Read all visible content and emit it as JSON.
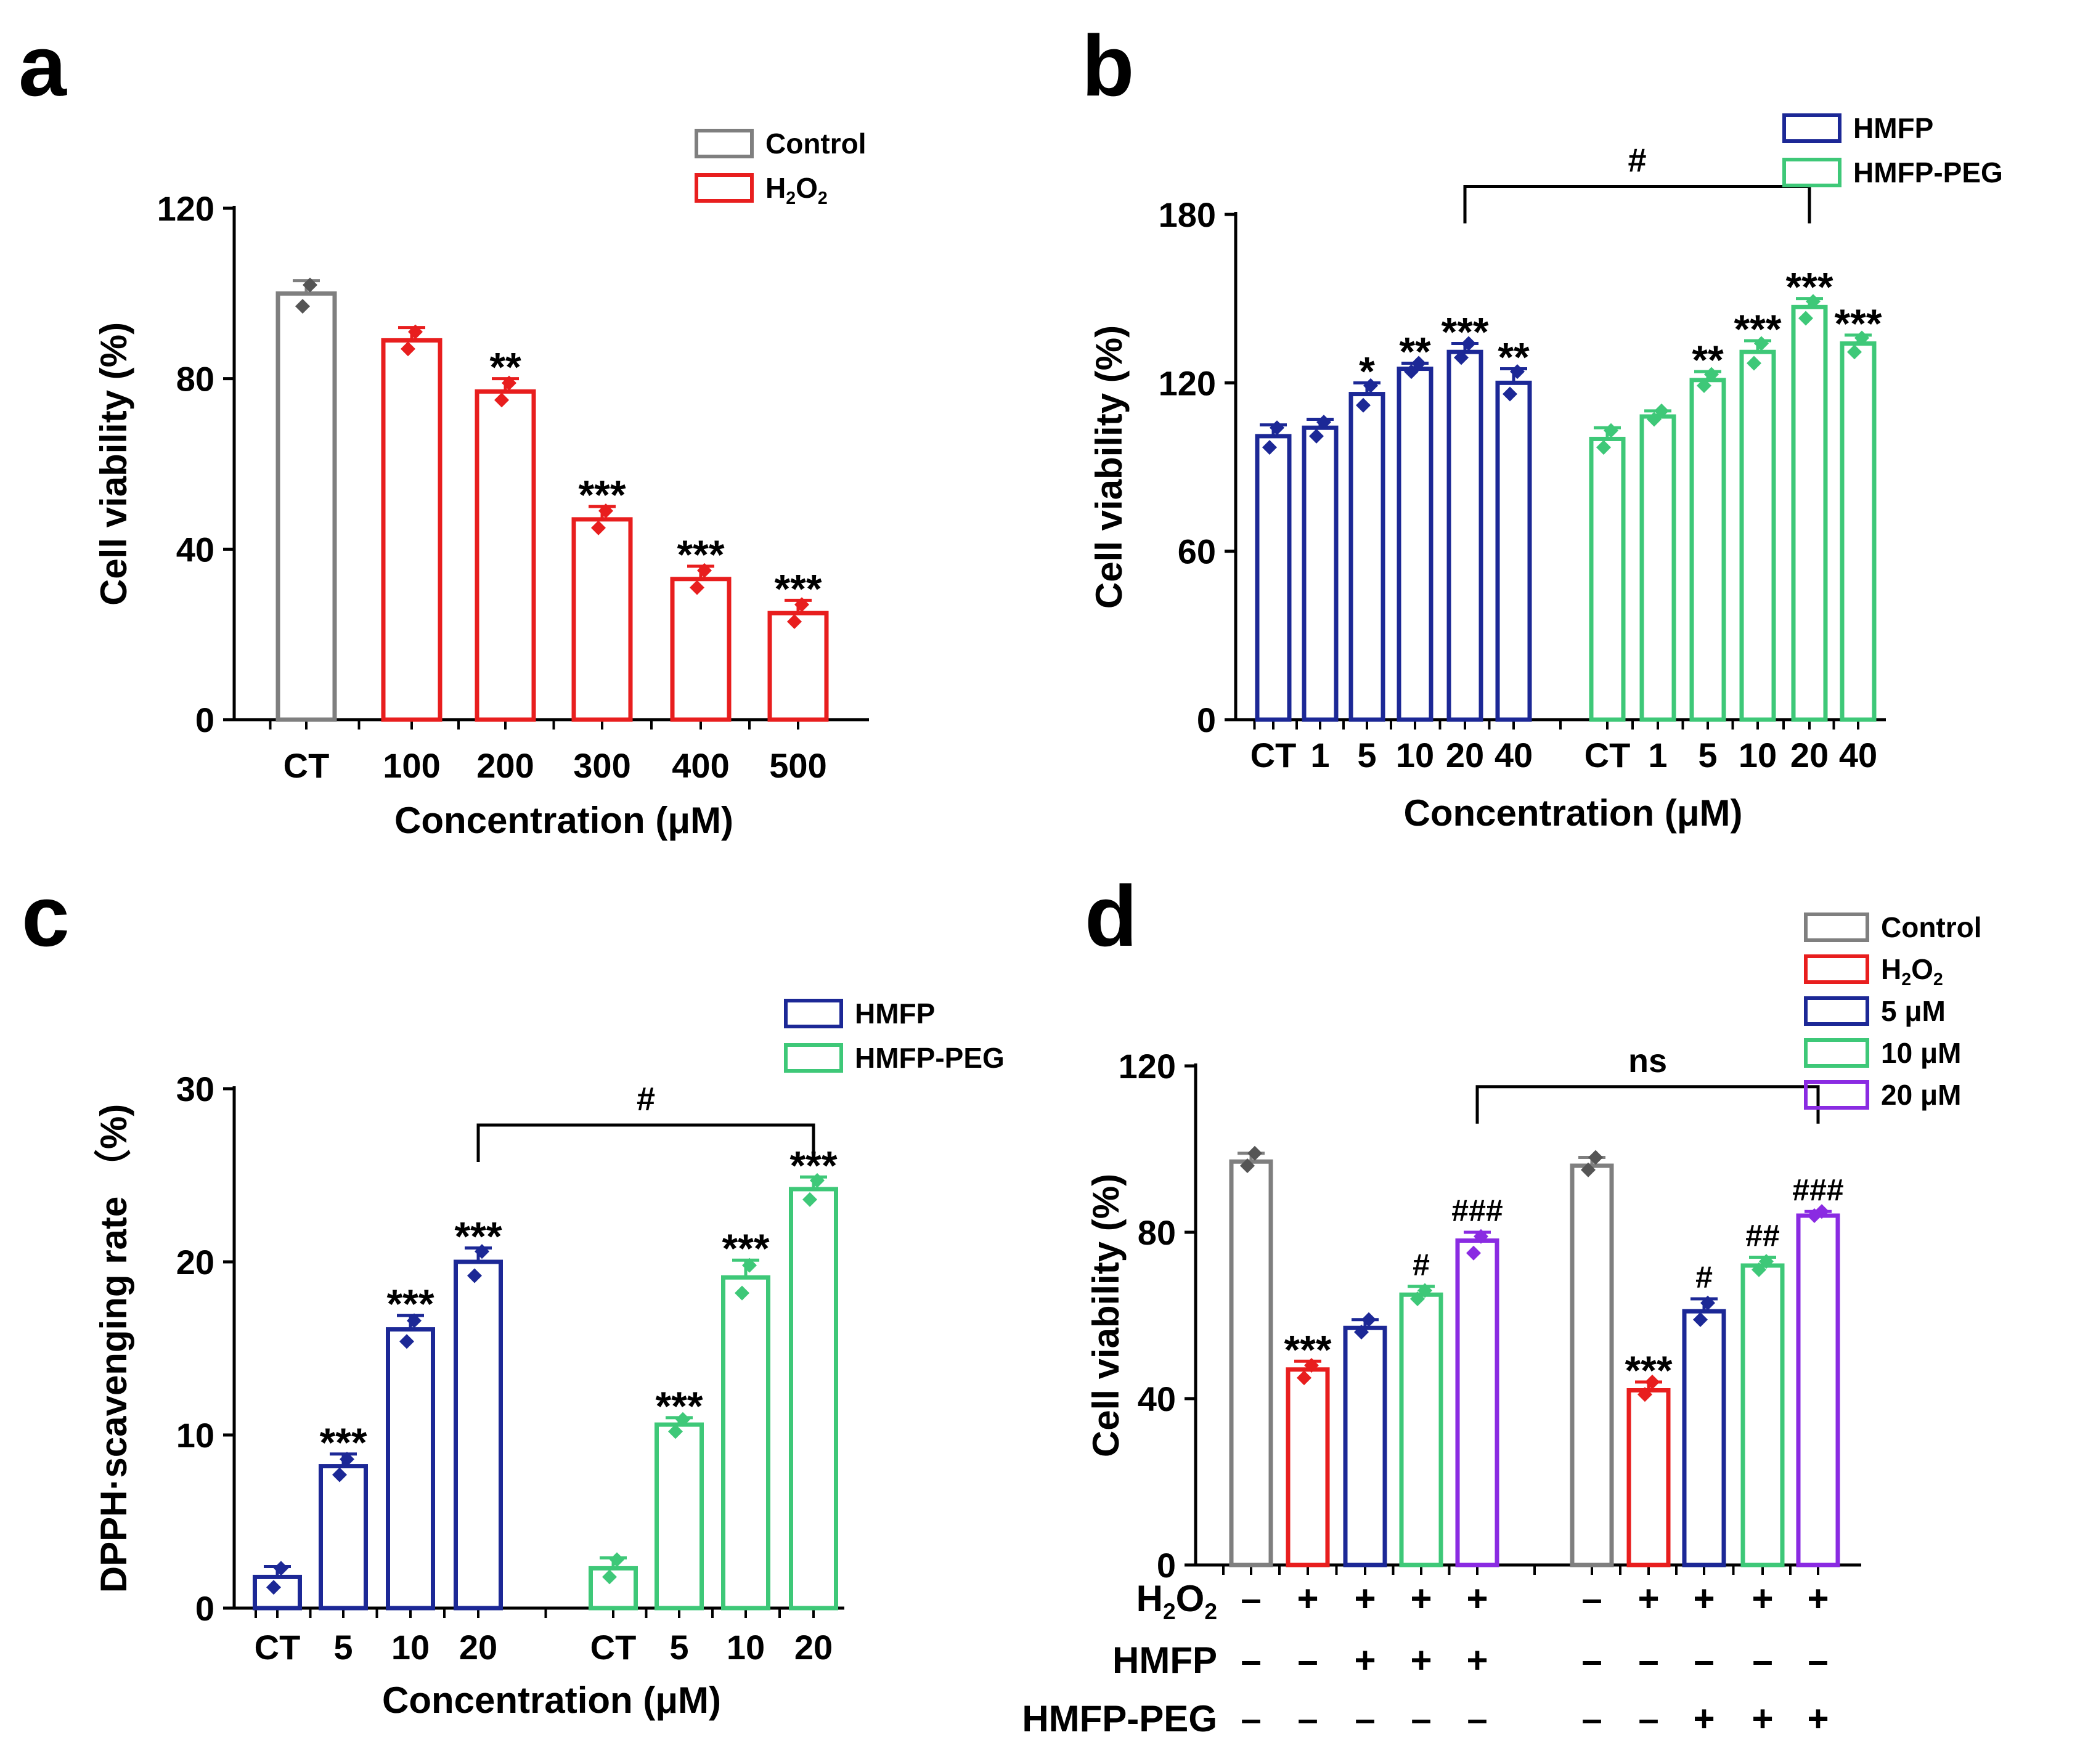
{
  "colors": {
    "control": "#7f7f7f",
    "h2o2": "#e81e1e",
    "hmfp": "#1c2896",
    "hmfp_peg": "#3ec878",
    "dose20": "#8a2be2",
    "point_control": "#555555"
  },
  "chart_data": [
    {
      "panel": "a",
      "type": "bar",
      "xlabel": "Concentration (μM)",
      "ylabel": "Cell viability (%)",
      "ylim": [
        0,
        120
      ],
      "yticks": [
        0,
        40,
        80,
        120
      ],
      "legend": {
        "position": "top-right",
        "entries": [
          {
            "label": "Control",
            "color": "control"
          },
          {
            "label": "H2O2",
            "color": "h2o2"
          }
        ]
      },
      "bars": [
        {
          "label": "CT",
          "value": 100,
          "err": 3,
          "color": "control",
          "points": [
            102,
            97
          ],
          "sig": ""
        },
        {
          "label": "100",
          "value": 89,
          "err": 3,
          "color": "h2o2",
          "points": [
            91,
            87
          ],
          "sig": ""
        },
        {
          "label": "200",
          "value": 77,
          "err": 3,
          "color": "h2o2",
          "points": [
            79,
            75
          ],
          "sig": "**"
        },
        {
          "label": "300",
          "value": 47,
          "err": 3,
          "color": "h2o2",
          "points": [
            49,
            45
          ],
          "sig": "***"
        },
        {
          "label": "400",
          "value": 33,
          "err": 3,
          "color": "h2o2",
          "points": [
            35,
            31
          ],
          "sig": "***"
        },
        {
          "label": "500",
          "value": 25,
          "err": 3,
          "color": "h2o2",
          "points": [
            27,
            23
          ],
          "sig": "***"
        }
      ]
    },
    {
      "panel": "b",
      "type": "bar",
      "xlabel": "Concentration (μM)",
      "ylabel": "Cell viability (%)",
      "ylim": [
        0,
        180
      ],
      "yticks": [
        0,
        60,
        120,
        180
      ],
      "legend": {
        "position": "top-right",
        "entries": [
          {
            "label": "HMFP",
            "color": "hmfp"
          },
          {
            "label": "HMFP-PEG",
            "color": "hmfp_peg"
          }
        ]
      },
      "bars": [
        {
          "label": "CT",
          "value": 101,
          "err": 4,
          "color": "hmfp",
          "points": [
            104,
            97
          ],
          "sig": ""
        },
        {
          "label": "1",
          "value": 104,
          "err": 3,
          "color": "hmfp",
          "points": [
            106,
            101
          ],
          "sig": ""
        },
        {
          "label": "5",
          "value": 116,
          "err": 4,
          "color": "hmfp",
          "points": [
            119,
            112
          ],
          "sig": "*"
        },
        {
          "label": "10",
          "value": 125,
          "err": 2,
          "color": "hmfp",
          "points": [
            127,
            124
          ],
          "sig": "**"
        },
        {
          "label": "20",
          "value": 131,
          "err": 3,
          "color": "hmfp",
          "points": [
            134,
            129
          ],
          "sig": "***"
        },
        {
          "label": "40",
          "value": 120,
          "err": 5,
          "color": "hmfp",
          "points": [
            124,
            116
          ],
          "sig": "**"
        },
        {
          "label": "CT",
          "value": 100,
          "err": 4,
          "color": "hmfp_peg",
          "points": [
            103,
            97
          ],
          "sig": ""
        },
        {
          "label": "1",
          "value": 108,
          "err": 2,
          "color": "hmfp_peg",
          "points": [
            110,
            107
          ],
          "sig": ""
        },
        {
          "label": "5",
          "value": 121,
          "err": 3,
          "color": "hmfp_peg",
          "points": [
            123,
            119
          ],
          "sig": "**"
        },
        {
          "label": "10",
          "value": 131,
          "err": 4,
          "color": "hmfp_peg",
          "points": [
            134,
            127
          ],
          "sig": "***"
        },
        {
          "label": "20",
          "value": 147,
          "err": 3,
          "color": "hmfp_peg",
          "points": [
            149,
            143
          ],
          "sig": "***"
        },
        {
          "label": "40",
          "value": 134,
          "err": 3,
          "color": "hmfp_peg",
          "points": [
            136,
            131
          ],
          "sig": "***"
        }
      ],
      "bracket": {
        "from": 4,
        "to": 10,
        "y": 190,
        "label": "#"
      }
    },
    {
      "panel": "c",
      "type": "bar",
      "xlabel": "Concentration (μM)",
      "ylabel": "DPPH·scavenging rate （%)",
      "ylim": [
        0,
        30
      ],
      "yticks": [
        0,
        10,
        20,
        30
      ],
      "legend": {
        "position": "top-right",
        "entries": [
          {
            "label": "HMFP",
            "color": "hmfp"
          },
          {
            "label": "HMFP-PEG",
            "color": "hmfp_peg"
          }
        ]
      },
      "bars": [
        {
          "label": "CT",
          "value": 1.8,
          "err": 0.6,
          "color": "hmfp",
          "points": [
            2.3,
            1.2
          ],
          "sig": ""
        },
        {
          "label": "5",
          "value": 8.2,
          "err": 0.7,
          "color": "hmfp",
          "points": [
            8.6,
            7.7
          ],
          "sig": "***"
        },
        {
          "label": "10",
          "value": 16.1,
          "err": 0.8,
          "color": "hmfp",
          "points": [
            16.6,
            15.4
          ],
          "sig": "***"
        },
        {
          "label": "20",
          "value": 20,
          "err": 0.8,
          "color": "hmfp",
          "points": [
            20.6,
            19.2
          ],
          "sig": "***"
        },
        {
          "label": "CT",
          "value": 2.3,
          "err": 0.6,
          "color": "hmfp_peg",
          "points": [
            2.8,
            1.8
          ],
          "sig": ""
        },
        {
          "label": "5",
          "value": 10.6,
          "err": 0.4,
          "color": "hmfp_peg",
          "points": [
            10.9,
            10.2
          ],
          "sig": "***"
        },
        {
          "label": "10",
          "value": 19.1,
          "err": 1,
          "color": "hmfp_peg",
          "points": [
            19.8,
            18.2
          ],
          "sig": "***"
        },
        {
          "label": "20",
          "value": 24.2,
          "err": 0.7,
          "color": "hmfp_peg",
          "points": [
            24.7,
            23.6
          ],
          "sig": "***"
        }
      ],
      "bracket": {
        "from": 3,
        "to": 7,
        "y": 27.9,
        "label": "#"
      }
    },
    {
      "panel": "d",
      "type": "bar",
      "ylabel": "Cell viability (%)",
      "ylim": [
        0,
        120
      ],
      "yticks": [
        0,
        40,
        80,
        120
      ],
      "legend": {
        "position": "top-right",
        "entries": [
          {
            "label": "Control",
            "color": "control"
          },
          {
            "label": "H2O2",
            "color": "h2o2"
          },
          {
            "label": "5 μM",
            "color": "hmfp"
          },
          {
            "label": "10 μM",
            "color": "hmfp_peg"
          },
          {
            "label": "20 μM",
            "color": "dose20"
          }
        ]
      },
      "bars": [
        {
          "value": 97,
          "err": 2,
          "color": "control",
          "points": [
            99,
            96
          ],
          "sig": ""
        },
        {
          "value": 47,
          "err": 2,
          "color": "h2o2",
          "points": [
            48,
            45
          ],
          "sig": "***"
        },
        {
          "value": 57,
          "err": 2,
          "color": "hmfp",
          "points": [
            59,
            56
          ],
          "sig": ""
        },
        {
          "value": 65,
          "err": 2,
          "color": "hmfp_peg",
          "points": [
            66,
            64
          ],
          "sig": "#"
        },
        {
          "value": 78,
          "err": 2,
          "color": "dose20",
          "points": [
            79,
            75
          ],
          "sig": "###"
        },
        {
          "value": 96,
          "err": 2,
          "color": "control",
          "points": [
            98,
            95
          ],
          "sig": ""
        },
        {
          "value": 42,
          "err": 2,
          "color": "h2o2",
          "points": [
            44,
            41
          ],
          "sig": "***"
        },
        {
          "value": 61,
          "err": 3,
          "color": "hmfp",
          "points": [
            63,
            59
          ],
          "sig": "#"
        },
        {
          "value": 72,
          "err": 2,
          "color": "hmfp_peg",
          "points": [
            73,
            71
          ],
          "sig": "##"
        },
        {
          "value": 84,
          "err": 1,
          "color": "dose20",
          "points": [
            85,
            84
          ],
          "sig": "###"
        }
      ],
      "bracket": {
        "from": 4,
        "to": 9,
        "y": 115,
        "label": "ns"
      },
      "treatment_rows": [
        {
          "label": "H2O2",
          "marks": [
            "–",
            "+",
            "+",
            "+",
            "+",
            "–",
            "+",
            "+",
            "+",
            "+"
          ]
        },
        {
          "label": "HMFP",
          "marks": [
            "–",
            "–",
            "+",
            "+",
            "+",
            "–",
            "–",
            "–",
            "–",
            "–"
          ]
        },
        {
          "label": "HMFP-PEG",
          "marks": [
            "–",
            "–",
            "–",
            "–",
            "–",
            "–",
            "–",
            "+",
            "+",
            "+"
          ]
        }
      ]
    }
  ]
}
